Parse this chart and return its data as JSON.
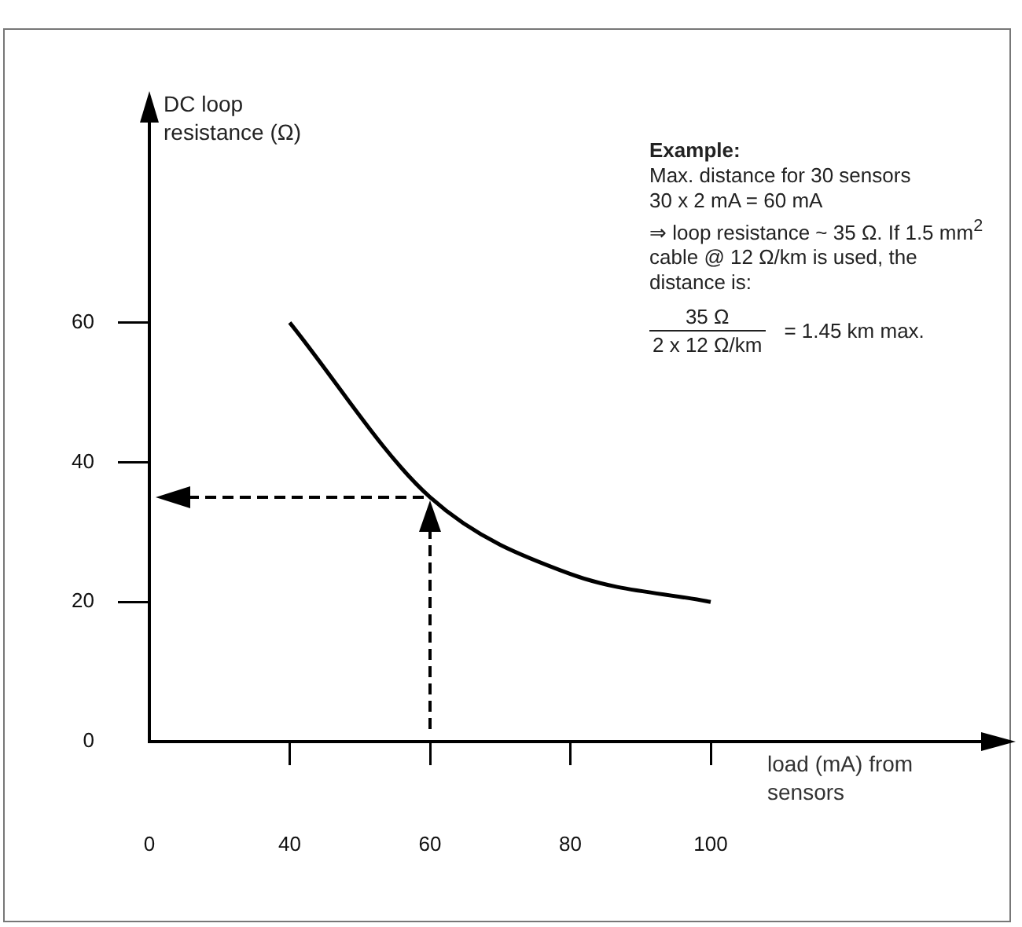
{
  "chart_data": {
    "type": "line",
    "ylabel": "DC loop resistance (Ω)",
    "xlabel": "load (mA) from sensors",
    "categories": [
      "0",
      "40",
      "60",
      "80",
      "100"
    ],
    "values": [
      null,
      60,
      35,
      24,
      20
    ],
    "color": "#000000",
    "marker": "none",
    "line_style": "solid",
    "ylim": [
      0,
      90
    ],
    "yticks": [
      0,
      20,
      40,
      60
    ],
    "ref_lines": [
      {
        "axis": "x",
        "value": "60",
        "line_style": "dashed",
        "color": "#000000"
      },
      {
        "axis": "y",
        "value": 35,
        "line_style": "dashed",
        "color": "#000000"
      }
    ],
    "annotations": [
      "Example:",
      "Max. distance for 30 sensors",
      "30 x 2 mA = 60 mA",
      "⇒ loop resistance ~ 35 Ω. If 1.5 mm$^{2}$ cable @ 12 Ω/km is used, the distance is:",
      "35 Ω",
      "2 x 12 Ω/km",
      "= 1.45 km max."
    ]
  }
}
